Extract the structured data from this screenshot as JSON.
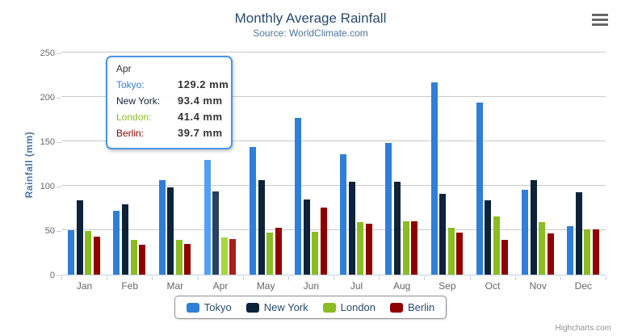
{
  "title": "Monthly Average Rainfall",
  "subtitle": "Source: WorldClimate.com",
  "y_axis_title": "Rainfall (mm)",
  "credits": "Highcharts.com",
  "chart_data": {
    "type": "bar",
    "title": "Monthly Average Rainfall",
    "subtitle": "Source: WorldClimate.com",
    "xlabel": "",
    "ylabel": "Rainfall (mm)",
    "ylim": [
      0,
      250
    ],
    "y_ticks": [
      0,
      50,
      100,
      150,
      200,
      250
    ],
    "grid": true,
    "legend_position": "bottom",
    "categories": [
      "Jan",
      "Feb",
      "Mar",
      "Apr",
      "May",
      "Jun",
      "Jul",
      "Aug",
      "Sep",
      "Oct",
      "Nov",
      "Dec"
    ],
    "series": [
      {
        "name": "Tokyo",
        "color": "#2f7ed8",
        "hover_color": "#549ff3",
        "values": [
          49.9,
          71.5,
          106.4,
          129.2,
          144.0,
          176.0,
          135.6,
          148.5,
          216.4,
          194.1,
          95.6,
          54.4
        ]
      },
      {
        "name": "New York",
        "color": "#0d233a",
        "hover_color": "#28415c",
        "values": [
          83.6,
          78.8,
          98.5,
          93.4,
          106.0,
          84.5,
          105.0,
          104.3,
          91.2,
          83.5,
          106.6,
          92.3
        ]
      },
      {
        "name": "London",
        "color": "#8bbc21",
        "hover_color": "#a6d73c",
        "values": [
          48.9,
          38.8,
          39.3,
          41.4,
          47.0,
          48.3,
          59.0,
          59.6,
          52.4,
          65.2,
          59.3,
          51.2
        ]
      },
      {
        "name": "Berlin",
        "color": "#910000",
        "hover_color": "#ac1c1c",
        "values": [
          42.4,
          33.2,
          34.5,
          39.7,
          52.6,
          75.5,
          57.4,
          60.4,
          47.6,
          39.1,
          46.8,
          51.1
        ]
      }
    ],
    "hovered_category_index": 3
  },
  "tooltip": {
    "header": "Apr",
    "rows": [
      {
        "label": "Tokyo:",
        "value": "129.2 mm",
        "color": "#2f7ed8"
      },
      {
        "label": "New York:",
        "value": "93.4 mm",
        "color": "#0d233a"
      },
      {
        "label": "London:",
        "value": "41.4 mm",
        "color": "#8bbc21"
      },
      {
        "label": "Berlin:",
        "value": "39.7 mm",
        "color": "#910000"
      }
    ]
  },
  "legend": {
    "items": [
      "Tokyo",
      "New York",
      "London",
      "Berlin"
    ]
  }
}
